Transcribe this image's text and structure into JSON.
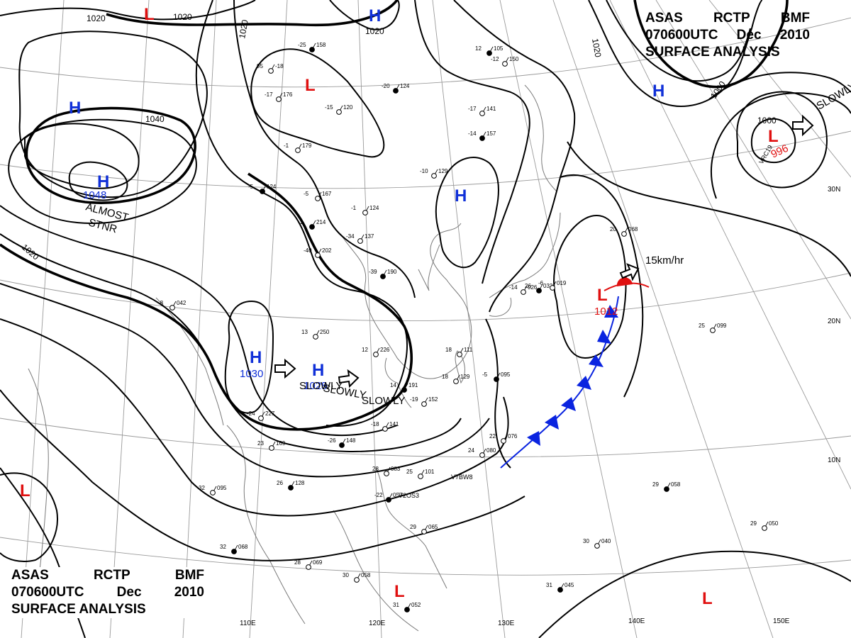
{
  "header_top": {
    "agency": "ASAS",
    "station": "RCTP",
    "office": "BMF",
    "time": "070600UTC",
    "month": "Dec",
    "year": "2010",
    "product": "SURFACE ANALYSIS"
  },
  "header_bottom": {
    "agency": "ASAS",
    "station": "RCTP",
    "office": "BMF",
    "time": "070600UTC",
    "month": "Dec",
    "year": "2010",
    "product": "SURFACE ANALYSIS"
  },
  "colors": {
    "high": "#1030d8",
    "low": "#e01010",
    "front": "#0a24e0",
    "line": "#000000",
    "grid": "#9a9a9a"
  },
  "longitudes": [
    "110E",
    "120E",
    "130E",
    "140E",
    "150E"
  ],
  "latitudes": [
    "30N",
    "20N",
    "10N"
  ],
  "isobar_labels": [
    "1020",
    "1020",
    "1020",
    "1020",
    "1040",
    "1020",
    "1020",
    "1000"
  ],
  "pressure_centers": [
    {
      "type": "H",
      "value": ""
    },
    {
      "type": "H",
      "value": "1048"
    },
    {
      "type": "H",
      "value": "1030"
    },
    {
      "type": "H",
      "value": "1028"
    },
    {
      "type": "H",
      "value": ""
    },
    {
      "type": "H",
      "value": ""
    },
    {
      "type": "H",
      "value": ""
    },
    {
      "type": "L",
      "value": ""
    },
    {
      "type": "L",
      "value": ""
    },
    {
      "type": "L",
      "value": "996"
    },
    {
      "type": "L",
      "value": "1012"
    },
    {
      "type": "L",
      "value": ""
    },
    {
      "type": "L",
      "value": ""
    },
    {
      "type": "L",
      "value": ""
    }
  ],
  "annotations": [
    "ALMOST",
    "STNR",
    "SLOWLY",
    "SLOWLY",
    "SLOWLY",
    "15km/hr",
    "SLOWLY"
  ],
  "stations": [
    {
      "a": "-25",
      "b": "158"
    },
    {
      "a": "95",
      "b": "-18"
    },
    {
      "a": "-17",
      "b": "176"
    },
    {
      "a": "-20",
      "b": "124"
    },
    {
      "a": "-15",
      "b": "120"
    },
    {
      "a": "-17",
      "b": "141"
    },
    {
      "a": "-14",
      "b": "157"
    },
    {
      "a": "-10",
      "b": "129"
    },
    {
      "a": "-1",
      "b": "179"
    },
    {
      "a": "-5",
      "b": "124"
    },
    {
      "a": "-5",
      "b": "167"
    },
    {
      "a": "-1",
      "b": "124"
    },
    {
      "a": "-1",
      "b": "214"
    },
    {
      "a": "-34",
      "b": "137"
    },
    {
      "a": "-40",
      "b": "202"
    },
    {
      "a": "-39",
      "b": "190"
    },
    {
      "a": "13",
      "b": "250"
    },
    {
      "a": "12",
      "b": "226"
    },
    {
      "a": "14",
      "b": "191"
    },
    {
      "a": "-24",
      "b": "227"
    },
    {
      "a": "23",
      "b": "169"
    },
    {
      "a": "26",
      "b": "128"
    },
    {
      "a": "18",
      "b": "111"
    },
    {
      "a": "18",
      "b": "129"
    },
    {
      "a": "-5",
      "b": "095"
    },
    {
      "a": "-19",
      "b": "152"
    },
    {
      "a": "-18",
      "b": "141"
    },
    {
      "a": "-26",
      "b": "148"
    },
    {
      "a": "28",
      "b": "083"
    },
    {
      "a": "25",
      "b": "101"
    },
    {
      "a": "-22",
      "b": "057"
    },
    {
      "a": "29",
      "b": "065"
    },
    {
      "a": "30",
      "b": "058"
    },
    {
      "a": "31",
      "b": "052"
    },
    {
      "a": "22",
      "b": "076"
    },
    {
      "a": "24",
      "b": "080"
    },
    {
      "a": "29",
      "b": "058"
    },
    {
      "a": "29",
      "b": "050"
    },
    {
      "a": "30",
      "b": "040"
    },
    {
      "a": "31",
      "b": "045"
    },
    {
      "a": "25",
      "b": "099"
    },
    {
      "a": "20",
      "b": "068"
    },
    {
      "a": "26",
      "b": "032"
    },
    {
      "a": "-8",
      "b": "042"
    },
    {
      "a": "32",
      "b": "095"
    },
    {
      "a": "32",
      "b": "068"
    },
    {
      "a": "28",
      "b": "069"
    },
    {
      "a": "-12",
      "b": "150"
    },
    {
      "a": "12",
      "b": "105"
    },
    {
      "a": "-6",
      "b": "019"
    },
    {
      "a": "-14",
      "b": "026"
    }
  ],
  "station_ids": [
    "V7BW8",
    "V2OS3",
    "VRC19"
  ]
}
